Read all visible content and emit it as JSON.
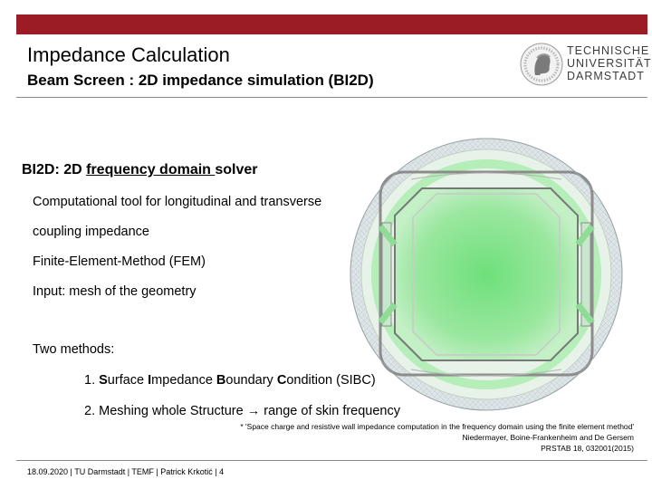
{
  "header": {
    "title": "Impedance Calculation",
    "subtitle": "Beam Screen : 2D impedance simulation (BI2D)",
    "accent_color": "#9c1c26",
    "logo": {
      "icon": "university-seal-icon",
      "lines": [
        "TECHNISCHE",
        "UNIVERSITÄT",
        "DARMSTADT"
      ]
    }
  },
  "body": {
    "heading_prefix": "BI2D: 2D ",
    "heading_underlined": "frequency domain ",
    "heading_suffix": "solver",
    "points": [
      "Computational tool for longitudinal and transverse",
      "coupling impedance",
      "Finite-Element-Method (FEM)",
      "Input: mesh of the geometry",
      "Two methods:"
    ],
    "methods": [
      {
        "num": "1. ",
        "parts": [
          [
            "S",
            "urface "
          ],
          [
            "I",
            "mpedance "
          ],
          [
            "B",
            "oundary "
          ],
          [
            "C",
            "ondition (SIBC)"
          ]
        ]
      },
      {
        "text_before": "2. Meshing whole Structure ",
        "arrow": "→",
        "text_after": " range of skin frequency"
      }
    ]
  },
  "citation": {
    "line1": "* 'Space charge and resistive wall impedance computation in the frequency domain using the finite element method'",
    "line2": "Niedermayer, Boine-Frankenheim and De Gersem",
    "line3": "PRSTAB 18, 032001(2015)"
  },
  "footer": {
    "text": "18.09.2020 | TU Darmstadt | TEMF | Patrick Krkotić | 4"
  }
}
